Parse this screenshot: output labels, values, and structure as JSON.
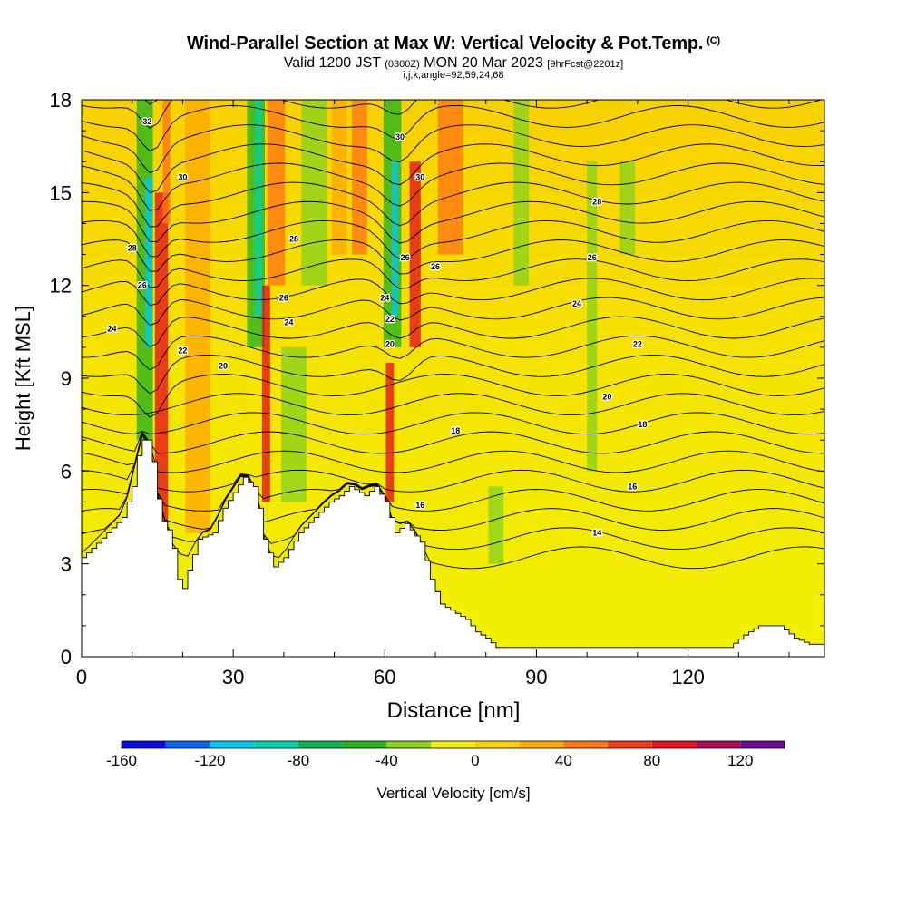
{
  "title": {
    "main": "Wind-Parallel Section at Max W: Vertical Velocity & Pot.Temp.",
    "copyright": "(C)",
    "valid_prefix": "Valid 1200 JST",
    "valid_utc": "(0300Z)",
    "valid_date": "MON 20 Mar 2023",
    "forecast": "[9hrFcst@2201z]",
    "indices": "i,j,k,angle=92,59,24,68"
  },
  "chart_data": {
    "type": "cross-section",
    "xlabel": "Distance [nm]",
    "ylabel": "Height [Kft MSL]",
    "xlim": [
      0,
      147
    ],
    "ylim": [
      0,
      18
    ],
    "xticks": [
      "0",
      "30",
      "60",
      "90",
      "120"
    ],
    "yticks": [
      "0",
      "3",
      "6",
      "9",
      "12",
      "15",
      "18"
    ],
    "colorbar": {
      "label": "Vertical Velocity [cm/s]",
      "ticks": [
        "-160",
        "-120",
        "-80",
        "-40",
        "0",
        "40",
        "80",
        "120"
      ],
      "bounds": [
        -160,
        140
      ],
      "colors": [
        "#0a0ae6",
        "#0a64f0",
        "#00c8f0",
        "#00d2aa",
        "#0ab450",
        "#28b41e",
        "#8cd21e",
        "#f0f000",
        "#ffd200",
        "#ffaa00",
        "#ff7814",
        "#f03c14",
        "#e6141e",
        "#aa0a50",
        "#6e0a96"
      ]
    },
    "contour_labels": [
      {
        "x": 13,
        "y": 17.3,
        "t": "32"
      },
      {
        "x": 63,
        "y": 16.8,
        "t": "30"
      },
      {
        "x": 20,
        "y": 15.5,
        "t": "30"
      },
      {
        "x": 67,
        "y": 15.5,
        "t": "30"
      },
      {
        "x": 102,
        "y": 14.7,
        "t": "28"
      },
      {
        "x": 42,
        "y": 13.5,
        "t": "28"
      },
      {
        "x": 10,
        "y": 13.2,
        "t": "28"
      },
      {
        "x": 101,
        "y": 12.9,
        "t": "26"
      },
      {
        "x": 64,
        "y": 12.9,
        "t": "26"
      },
      {
        "x": 70,
        "y": 12.6,
        "t": "26"
      },
      {
        "x": 12,
        "y": 12.0,
        "t": "26"
      },
      {
        "x": 40,
        "y": 11.6,
        "t": "26"
      },
      {
        "x": 60,
        "y": 11.6,
        "t": "24"
      },
      {
        "x": 98,
        "y": 11.4,
        "t": "24"
      },
      {
        "x": 6,
        "y": 10.6,
        "t": "24"
      },
      {
        "x": 41,
        "y": 10.8,
        "t": "24"
      },
      {
        "x": 61,
        "y": 10.9,
        "t": "22"
      },
      {
        "x": 20,
        "y": 9.9,
        "t": "22"
      },
      {
        "x": 110,
        "y": 10.1,
        "t": "22"
      },
      {
        "x": 61,
        "y": 10.1,
        "t": "20"
      },
      {
        "x": 28,
        "y": 9.4,
        "t": "20"
      },
      {
        "x": 104,
        "y": 8.4,
        "t": "20"
      },
      {
        "x": 74,
        "y": 7.3,
        "t": "18"
      },
      {
        "x": 111,
        "y": 7.5,
        "t": "18"
      },
      {
        "x": 109,
        "y": 5.5,
        "t": "16"
      },
      {
        "x": 67,
        "y": 4.9,
        "t": "16"
      },
      {
        "x": 102,
        "y": 4.0,
        "t": "14"
      }
    ]
  }
}
